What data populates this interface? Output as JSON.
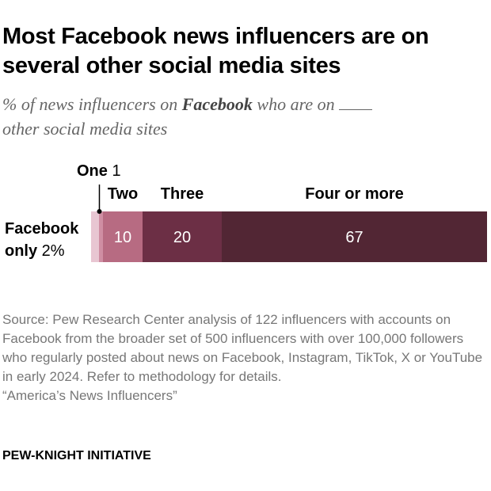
{
  "title": "Most Facebook news influencers are on several other social media sites",
  "subtitle": {
    "pre": "% of news influencers on ",
    "bold": "Facebook",
    "post": " who are on",
    "post2": "other social media sites"
  },
  "chart_data": {
    "type": "bar",
    "stacked": true,
    "orientation": "horizontal",
    "categories": [
      "Facebook only",
      "One",
      "Two",
      "Three",
      "Four or more"
    ],
    "row_label": "",
    "values": [
      2,
      1,
      10,
      20,
      67
    ],
    "data_labels": [
      "2%",
      "1",
      "10",
      "20",
      "67"
    ],
    "colors": [
      "#e8c6d2",
      "#cf8ea3",
      "#b76b82",
      "#6c2f45",
      "#522634"
    ],
    "xlim": [
      0,
      100
    ]
  },
  "source": "Source: Pew Research Center analysis of 122 influencers with accounts on Facebook from the broader set of 500 influencers with over 100,000 followers who regularly posted about news on Facebook, Instagram, TikTok, X or YouTube in early 2024. Refer to methodology for details.",
  "report": "“America’s News Influencers”",
  "brand": "PEW-KNIGHT INITIATIVE"
}
